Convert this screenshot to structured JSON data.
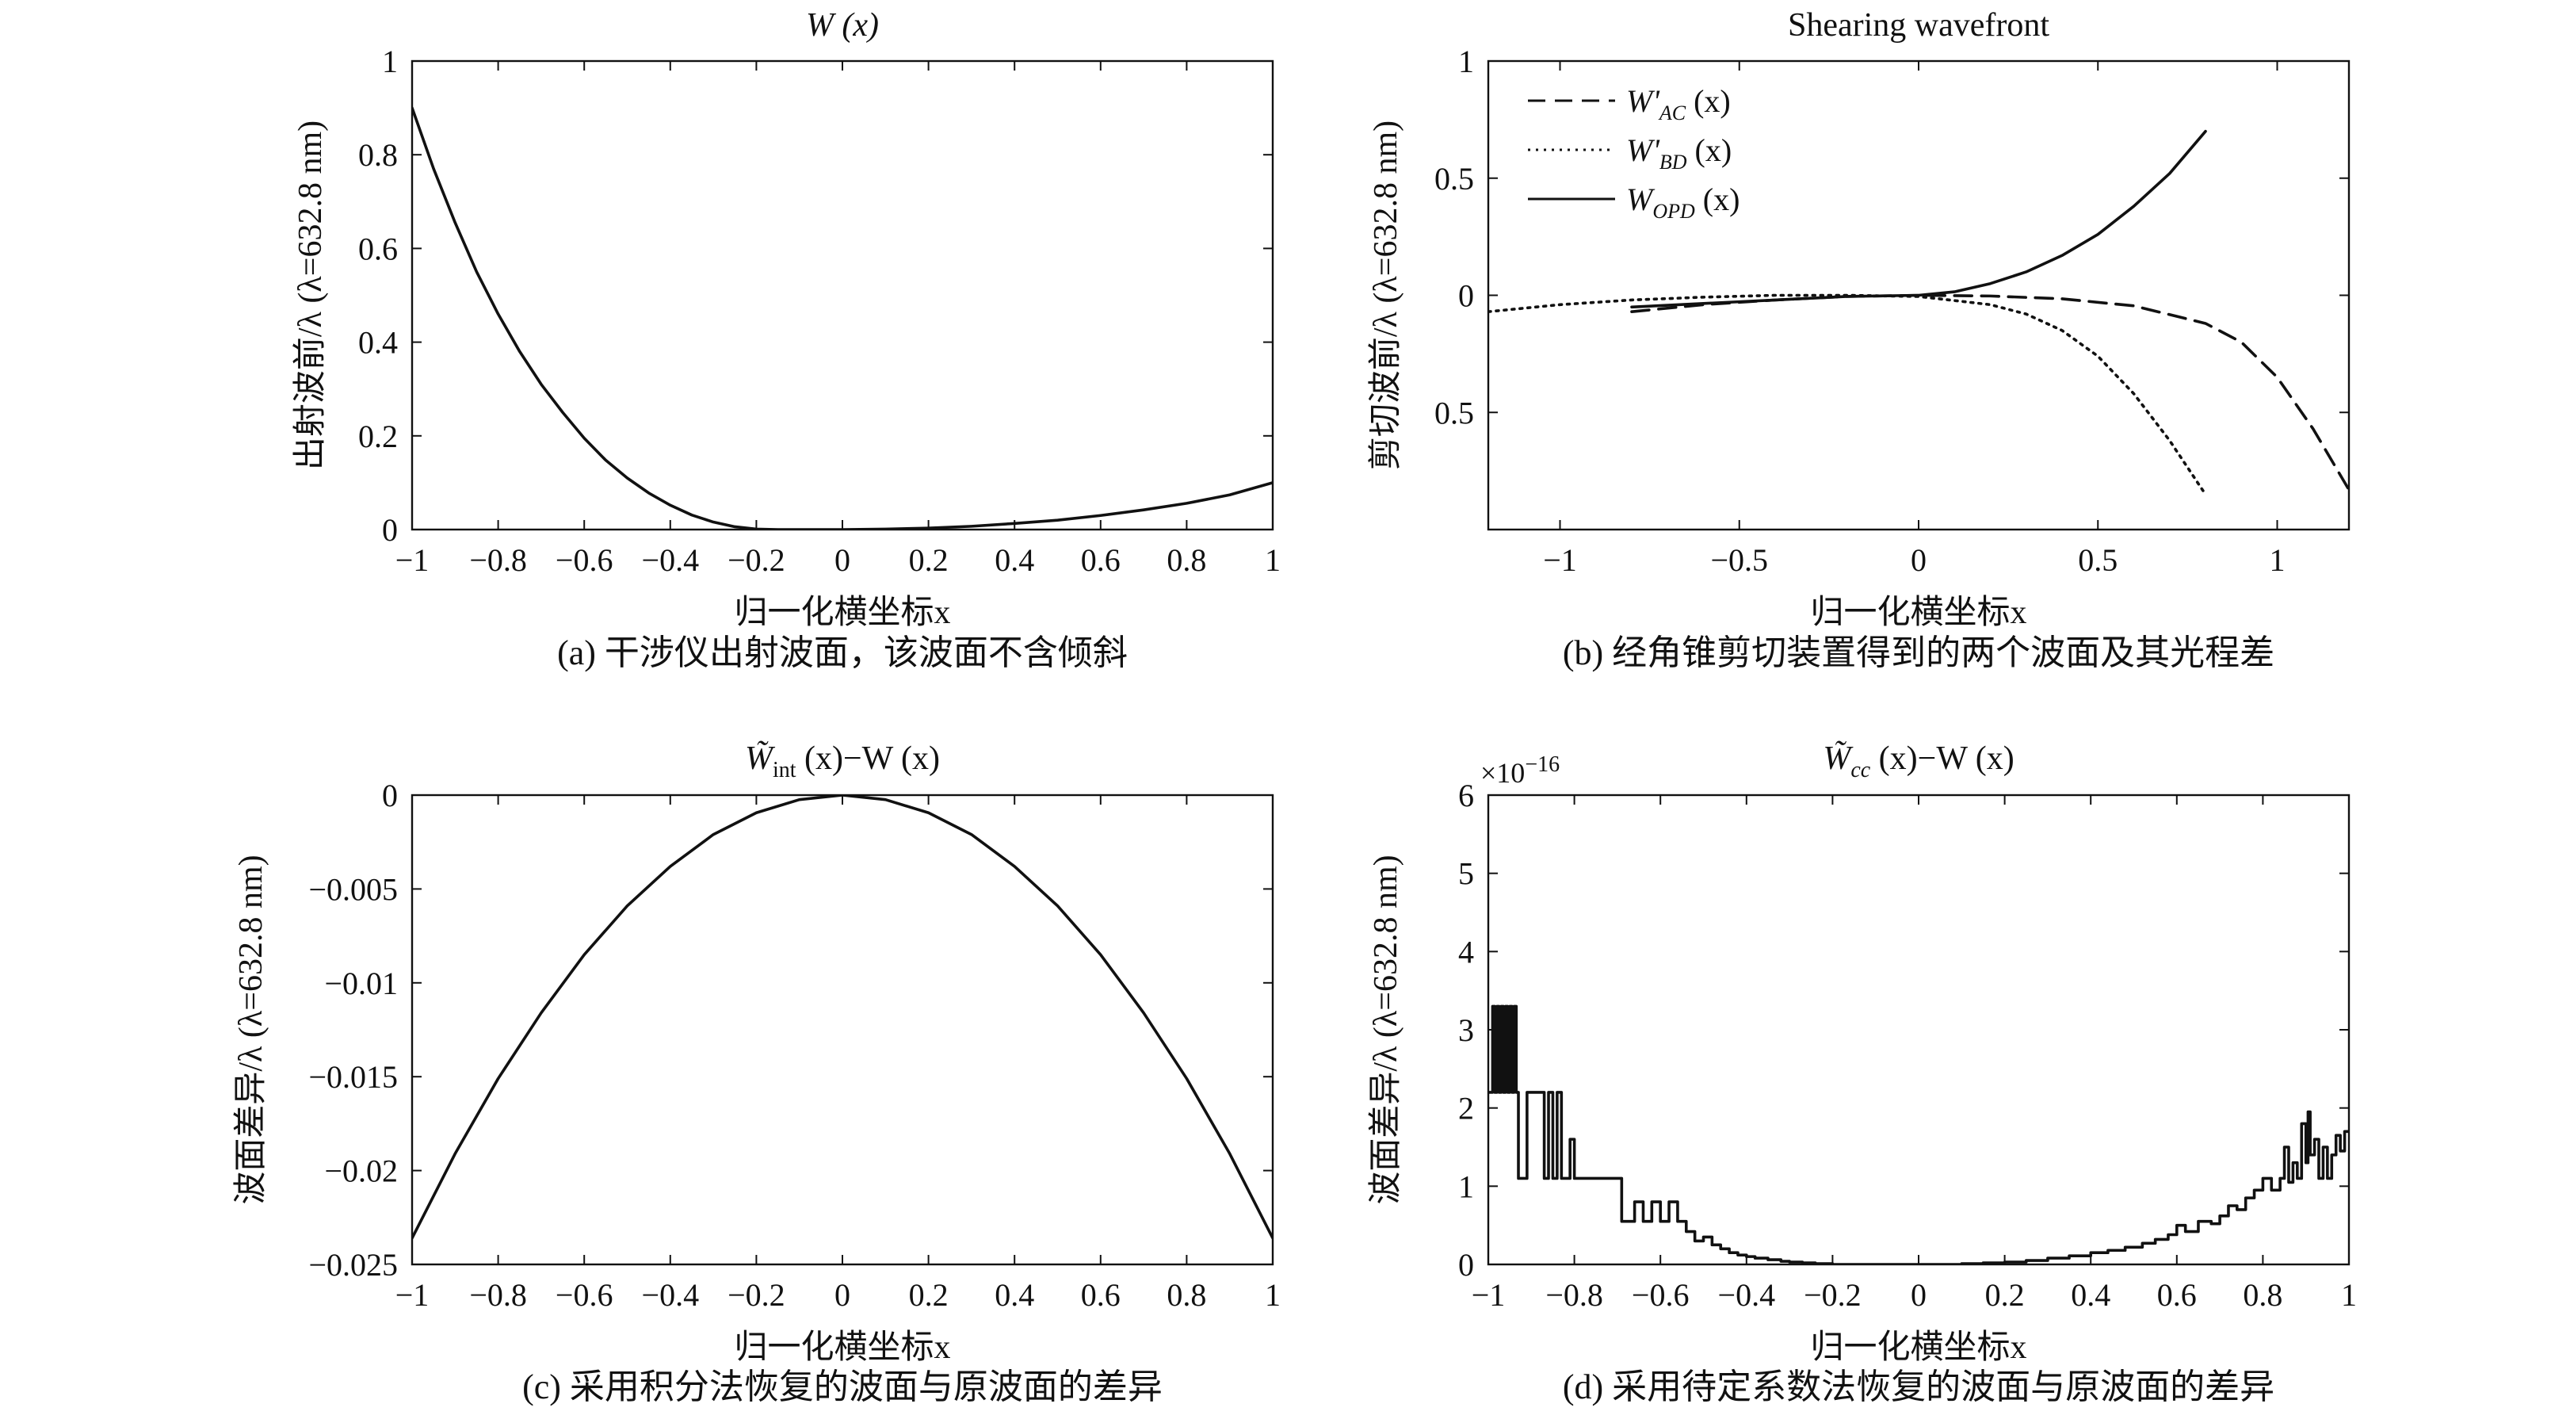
{
  "chart_data": [
    {
      "id": "a",
      "type": "line",
      "title": "W (x)",
      "xlabel": "归一化横坐标x",
      "ylabel": "出射波前/λ (λ=632.8 nm)",
      "caption": "(a) 干涉仪出射波面，该波面不含倾斜",
      "xlim": [
        -1,
        1
      ],
      "ylim": [
        0,
        1
      ],
      "xticks": [
        -1,
        -0.8,
        -0.6,
        -0.4,
        -0.2,
        0,
        0.2,
        0.4,
        0.6,
        0.8,
        1
      ],
      "xtick_labels": [
        "−1",
        "−0.8",
        "−0.6",
        "−0.4",
        "−0.2",
        "0",
        "0.2",
        "0.4",
        "0.6",
        "0.8",
        "1"
      ],
      "yticks": [
        0,
        0.2,
        0.4,
        0.6,
        0.8,
        1
      ],
      "ytick_labels": [
        "0",
        "0.2",
        "0.4",
        "0.6",
        "0.8",
        "1"
      ],
      "grid": false,
      "series": [
        {
          "style": "solid",
          "x": [
            -1,
            -0.95,
            -0.9,
            -0.85,
            -0.8,
            -0.75,
            -0.7,
            -0.65,
            -0.6,
            -0.55,
            -0.5,
            -0.45,
            -0.4,
            -0.35,
            -0.3,
            -0.25,
            -0.2,
            -0.15,
            -0.1,
            -0.05,
            0,
            0.1,
            0.2,
            0.3,
            0.4,
            0.5,
            0.6,
            0.7,
            0.8,
            0.9,
            1
          ],
          "y": [
            0.9,
            0.77,
            0.655,
            0.55,
            0.46,
            0.38,
            0.31,
            0.25,
            0.195,
            0.148,
            0.11,
            0.078,
            0.052,
            0.031,
            0.016,
            0.006,
            0.001,
            0.0,
            0.0,
            0.0,
            0.0,
            0.001,
            0.003,
            0.007,
            0.013,
            0.02,
            0.03,
            0.042,
            0.056,
            0.074,
            0.1
          ]
        }
      ]
    },
    {
      "id": "b",
      "type": "line",
      "title": "Shearing wavefront",
      "xlabel": "归一化横坐标x",
      "ylabel": "剪切波前/λ (λ=632.8 nm)",
      "caption": "(b) 经角锥剪切装置得到的两个波面及其光程差",
      "xlim": [
        -1.2,
        1.2
      ],
      "ylim": [
        -1,
        1
      ],
      "xticks": [
        -1,
        -0.5,
        0,
        0.5,
        1
      ],
      "xtick_labels": [
        "−1",
        "−0.5",
        "0",
        "0.5",
        "1"
      ],
      "yticks": [
        1,
        0.5,
        0,
        -0.5
      ],
      "ytick_labels": [
        "1",
        "0.5",
        "0",
        "0.5"
      ],
      "grid": false,
      "legend_position": "top-left",
      "series": [
        {
          "name_main": "W'",
          "name_sub": "AC",
          "name_arg": "(x)",
          "style": "dashed",
          "x": [
            -0.8,
            -0.6,
            -0.4,
            -0.2,
            0,
            0.2,
            0.4,
            0.6,
            0.8,
            0.9,
            1.0,
            1.1,
            1.2
          ],
          "y": [
            -0.07,
            -0.04,
            -0.02,
            -0.005,
            0.0,
            -0.003,
            -0.015,
            -0.045,
            -0.12,
            -0.2,
            -0.35,
            -0.57,
            -0.83
          ]
        },
        {
          "name_main": "W'",
          "name_sub": "BD",
          "name_arg": "(x)",
          "style": "dotted",
          "x": [
            -1.2,
            -1.0,
            -0.8,
            -0.6,
            -0.4,
            -0.2,
            0,
            0.2,
            0.3,
            0.4,
            0.5,
            0.6,
            0.7,
            0.8
          ],
          "y": [
            -0.07,
            -0.04,
            -0.02,
            -0.008,
            0.0,
            0.0,
            -0.005,
            -0.04,
            -0.08,
            -0.15,
            -0.26,
            -0.42,
            -0.62,
            -0.85
          ]
        },
        {
          "name_main": "W",
          "name_sub": "OPD",
          "name_arg": "(x)",
          "style": "solid",
          "x": [
            -0.8,
            -0.6,
            -0.4,
            -0.2,
            0,
            0.1,
            0.2,
            0.3,
            0.4,
            0.5,
            0.6,
            0.7,
            0.8
          ],
          "y": [
            -0.05,
            -0.035,
            -0.02,
            -0.005,
            0.0,
            0.015,
            0.05,
            0.1,
            0.17,
            0.26,
            0.38,
            0.52,
            0.7
          ]
        }
      ]
    },
    {
      "id": "c",
      "type": "line",
      "title_main": "W̃",
      "title_sub": "int",
      "title_rest": " (x)−W (x)",
      "xlabel": "归一化横坐标x",
      "ylabel": "波面差异/λ (λ=632.8 nm)",
      "caption": "(c) 采用积分法恢复的波面与原波面的差异",
      "xlim": [
        -1,
        1
      ],
      "ylim": [
        -0.025,
        0
      ],
      "xticks": [
        -1,
        -0.8,
        -0.6,
        -0.4,
        -0.2,
        0,
        0.2,
        0.4,
        0.6,
        0.8,
        1
      ],
      "xtick_labels": [
        "−1",
        "−0.8",
        "−0.6",
        "−0.4",
        "−0.2",
        "0",
        "0.2",
        "0.4",
        "0.6",
        "0.8",
        "1"
      ],
      "yticks": [
        0,
        -0.005,
        -0.01,
        -0.015,
        -0.02,
        -0.025
      ],
      "ytick_labels": [
        "0",
        "−0.005",
        "−0.01",
        "−0.015",
        "−0.02",
        "−0.025"
      ],
      "grid": false,
      "series": [
        {
          "style": "solid",
          "x": [
            -1,
            -0.9,
            -0.8,
            -0.7,
            -0.6,
            -0.5,
            -0.4,
            -0.3,
            -0.2,
            -0.1,
            0,
            0.1,
            0.2,
            0.3,
            0.4,
            0.5,
            0.6,
            0.7,
            0.8,
            0.9,
            1
          ],
          "y": [
            -0.0236,
            -0.0191,
            -0.0151,
            -0.0116,
            -0.0085,
            -0.0059,
            -0.0038,
            -0.0021,
            -0.00094,
            -0.00024,
            0.0,
            -0.00024,
            -0.00094,
            -0.0021,
            -0.0038,
            -0.0059,
            -0.0085,
            -0.0116,
            -0.0151,
            -0.0191,
            -0.0236
          ]
        }
      ]
    },
    {
      "id": "d",
      "type": "line",
      "title_main": "W̃",
      "title_sub": "cc",
      "title_rest": " (x)−W (x)",
      "xlabel": "归一化横坐标x",
      "ylabel": "波面差异/λ (λ=632.8 nm)",
      "caption": "(d) 采用待定系数法恢复的波面与原波面的差异",
      "scale_base": "×10",
      "scale_exp": "−16",
      "xlim": [
        -1,
        1
      ],
      "ylim": [
        0,
        6
      ],
      "xticks": [
        -1,
        -0.8,
        -0.6,
        -0.4,
        -0.2,
        0,
        0.2,
        0.4,
        0.6,
        0.8,
        1
      ],
      "xtick_labels": [
        "−1",
        "−0.8",
        "−0.6",
        "−0.4",
        "−0.2",
        "0",
        "0.2",
        "0.4",
        "0.6",
        "0.8",
        "1"
      ],
      "yticks": [
        0,
        1,
        2,
        3,
        4,
        5,
        6
      ],
      "ytick_labels": [
        "0",
        "1",
        "2",
        "3",
        "4",
        "5",
        "6"
      ],
      "grid": false,
      "series": [
        {
          "style": "solid-step",
          "x": [
            -1,
            -0.99,
            -0.985,
            -0.98,
            -0.975,
            -0.97,
            -0.965,
            -0.96,
            -0.955,
            -0.95,
            -0.945,
            -0.94,
            -0.935,
            -0.93,
            -0.92,
            -0.91,
            -0.9,
            -0.89,
            -0.88,
            -0.87,
            -0.86,
            -0.85,
            -0.84,
            -0.83,
            -0.82,
            -0.81,
            -0.8,
            -0.79,
            -0.78,
            -0.75,
            -0.72,
            -0.7,
            -0.69,
            -0.68,
            -0.66,
            -0.64,
            -0.62,
            -0.6,
            -0.58,
            -0.56,
            -0.54,
            -0.52,
            -0.5,
            -0.48,
            -0.46,
            -0.44,
            -0.42,
            -0.4,
            -0.38,
            -0.35,
            -0.32,
            -0.3,
            -0.27,
            -0.24,
            -0.2,
            -0.15,
            -0.1,
            -0.05,
            0,
            0.05,
            0.1,
            0.15,
            0.2,
            0.25,
            0.3,
            0.35,
            0.4,
            0.44,
            0.48,
            0.52,
            0.55,
            0.58,
            0.6,
            0.62,
            0.65,
            0.68,
            0.7,
            0.72,
            0.74,
            0.76,
            0.78,
            0.8,
            0.82,
            0.84,
            0.85,
            0.86,
            0.87,
            0.88,
            0.89,
            0.9,
            0.905,
            0.91,
            0.92,
            0.93,
            0.94,
            0.95,
            0.96,
            0.97,
            0.98,
            0.99,
            1
          ],
          "y": [
            2.2,
            3.3,
            2.2,
            3.3,
            2.2,
            3.3,
            2.2,
            3.3,
            2.2,
            3.3,
            2.2,
            3.3,
            2.2,
            1.1,
            1.1,
            2.2,
            2.2,
            2.2,
            2.2,
            1.1,
            2.2,
            1.1,
            2.2,
            1.1,
            1.1,
            1.6,
            1.1,
            1.1,
            1.1,
            1.1,
            1.1,
            1.1,
            0.55,
            0.55,
            0.8,
            0.55,
            0.8,
            0.55,
            0.8,
            0.55,
            0.42,
            0.3,
            0.35,
            0.25,
            0.2,
            0.15,
            0.12,
            0.1,
            0.08,
            0.06,
            0.04,
            0.03,
            0.02,
            0.01,
            0.0,
            0.0,
            0.0,
            0.0,
            0.0,
            0.0,
            0.01,
            0.02,
            0.03,
            0.05,
            0.08,
            0.11,
            0.15,
            0.18,
            0.22,
            0.27,
            0.32,
            0.38,
            0.5,
            0.42,
            0.55,
            0.52,
            0.62,
            0.75,
            0.7,
            0.85,
            0.95,
            1.1,
            0.95,
            1.1,
            1.5,
            1.05,
            1.3,
            1.1,
            1.8,
            1.3,
            1.95,
            1.4,
            1.6,
            1.1,
            1.5,
            1.1,
            1.4,
            1.65,
            1.45,
            1.7,
            1.7
          ]
        }
      ]
    }
  ]
}
